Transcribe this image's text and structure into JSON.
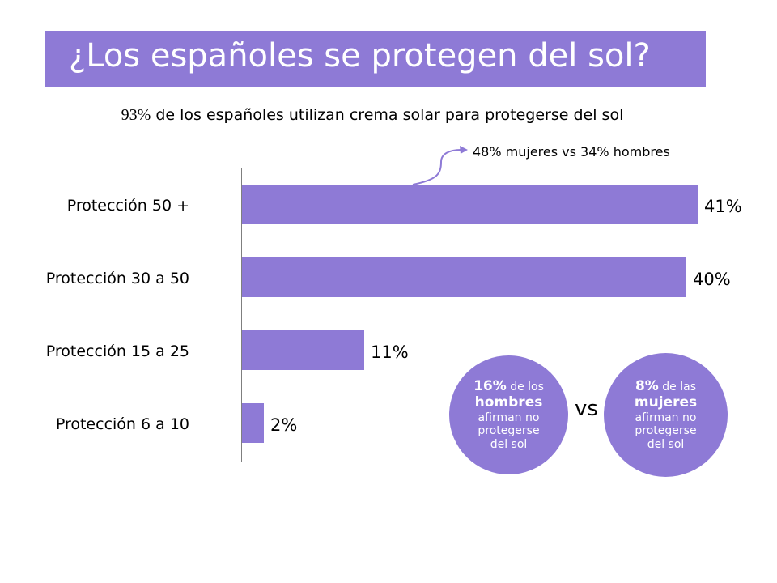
{
  "title": "¿Los españoles se protegen del sol?",
  "subtitle": {
    "pct": "93%",
    "text": " de los españoles utilizan crema solar para protegerse del sol"
  },
  "callout": {
    "text": "48% mujeres  vs 34% hombres"
  },
  "chart_data": {
    "type": "bar",
    "orientation": "horizontal",
    "categories": [
      "Protección 50 +",
      "Protección 30 a 50",
      "Protección 15 a 25",
      "Protección 6 a 10"
    ],
    "values": [
      41,
      40,
      11,
      2
    ],
    "value_labels": [
      "41%",
      "40%",
      "11%",
      "2%"
    ],
    "xlim": [
      0,
      41
    ],
    "grid": false,
    "bar_color": "#8e7ad6"
  },
  "comparison": {
    "men": {
      "pct": "16%",
      "line1": " de los",
      "line2": "hombres",
      "line3": "afirman no",
      "line4": "protegerse",
      "line5": "del sol"
    },
    "vs": "vs",
    "women": {
      "pct": "8%",
      "line1": " de las",
      "line2": "mujeres",
      "line3": "afirman no",
      "line4": "protegerse",
      "line5": "del sol"
    }
  },
  "colors": {
    "accent": "#8e7ad6",
    "axis": "#7f7f7f"
  }
}
